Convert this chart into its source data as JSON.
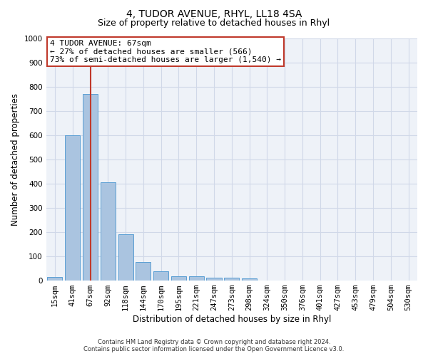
{
  "title": "4, TUDOR AVENUE, RHYL, LL18 4SA",
  "subtitle": "Size of property relative to detached houses in Rhyl",
  "xlabel": "Distribution of detached houses by size in Rhyl",
  "ylabel": "Number of detached properties",
  "categories": [
    "15sqm",
    "41sqm",
    "67sqm",
    "92sqm",
    "118sqm",
    "144sqm",
    "170sqm",
    "195sqm",
    "221sqm",
    "247sqm",
    "273sqm",
    "298sqm",
    "324sqm",
    "350sqm",
    "376sqm",
    "401sqm",
    "427sqm",
    "453sqm",
    "479sqm",
    "504sqm",
    "530sqm"
  ],
  "values": [
    15,
    600,
    770,
    405,
    190,
    78,
    38,
    18,
    17,
    12,
    13,
    8,
    0,
    0,
    0,
    0,
    0,
    0,
    0,
    0,
    0
  ],
  "bar_color": "#aac4e0",
  "bar_edge_color": "#5a9fd4",
  "property_line_index": 2,
  "property_line_color": "#c0392b",
  "annotation_line1": "4 TUDOR AVENUE: 67sqm",
  "annotation_line2": "← 27% of detached houses are smaller (566)",
  "annotation_line3": "73% of semi-detached houses are larger (1,540) →",
  "annotation_box_color": "#c0392b",
  "ylim": [
    0,
    1000
  ],
  "yticks": [
    0,
    100,
    200,
    300,
    400,
    500,
    600,
    700,
    800,
    900,
    1000
  ],
  "grid_color": "#d0d8e8",
  "background_color": "#eef2f8",
  "footer_line1": "Contains HM Land Registry data © Crown copyright and database right 2024.",
  "footer_line2": "Contains public sector information licensed under the Open Government Licence v3.0.",
  "title_fontsize": 10,
  "subtitle_fontsize": 9,
  "xlabel_fontsize": 8.5,
  "ylabel_fontsize": 8.5,
  "tick_fontsize": 7.5,
  "annotation_fontsize": 8
}
